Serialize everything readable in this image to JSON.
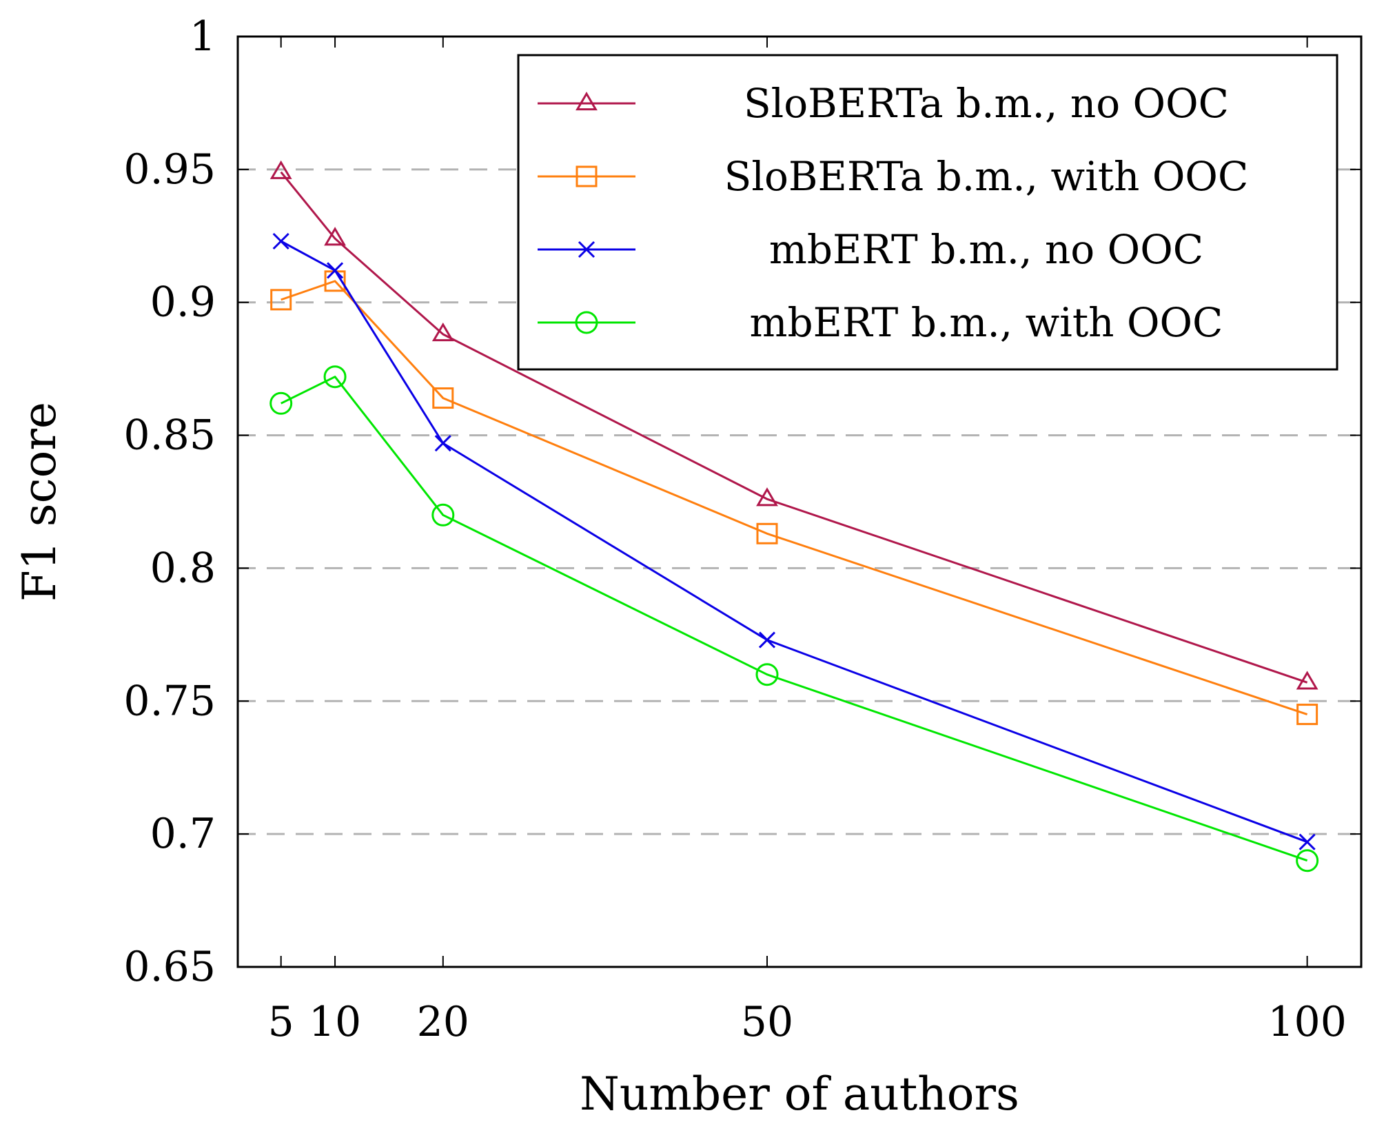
{
  "chart_data": {
    "type": "line",
    "title": "",
    "xlabel": "Number of authors",
    "ylabel": "F1 score",
    "x": [
      5,
      10,
      20,
      50,
      100
    ],
    "x_ticks": [
      "5",
      "10",
      "20",
      "50",
      "100"
    ],
    "xlim": [
      1,
      105
    ],
    "ylim": [
      0.65,
      1.0
    ],
    "y_ticks": [
      "0.65",
      "0.7",
      "0.75",
      "0.8",
      "0.85",
      "0.9",
      "0.95",
      "1"
    ],
    "grid": "horizontal-dashed",
    "legend_position": "top-right",
    "series": [
      {
        "name": "SloBERTa b.m., no OOC",
        "color": "#B0174B",
        "marker": "triangle",
        "values": [
          0.949,
          0.924,
          0.888,
          0.826,
          0.757
        ]
      },
      {
        "name": "SloBERTa b.m., with OOC",
        "color": "#FF7F0E",
        "marker": "square",
        "values": [
          0.901,
          0.908,
          0.864,
          0.813,
          0.745
        ]
      },
      {
        "name": "mbERT b.m., no OOC",
        "color": "#0A00E6",
        "marker": "cross",
        "values": [
          0.923,
          0.912,
          0.847,
          0.773,
          0.697
        ]
      },
      {
        "name": "mbERT b.m., with OOC",
        "color": "#00E600",
        "marker": "circle",
        "values": [
          0.862,
          0.872,
          0.82,
          0.76,
          0.69
        ]
      }
    ]
  }
}
